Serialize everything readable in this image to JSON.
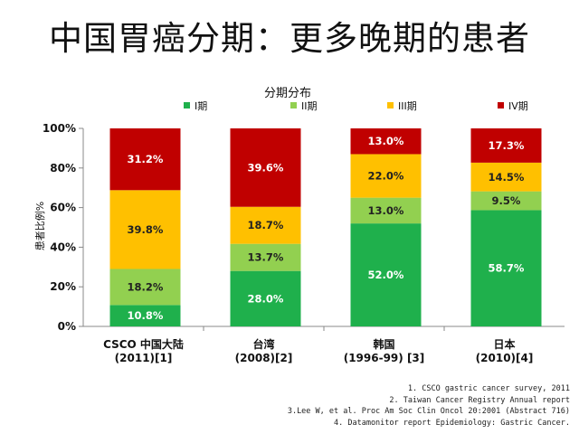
{
  "title": "中国胃癌分期：更多晚期的患者",
  "chart_data": {
    "type": "bar",
    "stacked": true,
    "legend_title": "分期分布",
    "legend_position": "top",
    "ylabel": "患者比例%",
    "ylim": [
      0,
      100
    ],
    "yticks": [
      "0%",
      "20%",
      "40%",
      "60%",
      "80%",
      "100%"
    ],
    "categories": [
      [
        "CSCO 中国大陆",
        "(2011)[1]"
      ],
      [
        "台湾",
        "(2008)[2]"
      ],
      [
        "韩国",
        "(1996-99) [3]"
      ],
      [
        "日本",
        "(2010)[4]"
      ]
    ],
    "series": [
      {
        "name": "I期",
        "color": "#1fb04c",
        "values": [
          10.8,
          28.0,
          52.0,
          58.7
        ],
        "labels": [
          "10.8%",
          "28.0%",
          "52.0%",
          "58.7%"
        ]
      },
      {
        "name": "II期",
        "color": "#92d050",
        "values": [
          18.2,
          13.7,
          13.0,
          9.5
        ],
        "labels": [
          "18.2%",
          "13.7%",
          "13.0%",
          "9.5%"
        ]
      },
      {
        "name": "III期",
        "color": "#ffc000",
        "values": [
          39.8,
          18.7,
          22.0,
          14.5
        ],
        "labels": [
          "39.8%",
          "18.7%",
          "22.0%",
          "14.5%"
        ]
      },
      {
        "name": "IV期",
        "color": "#c00000",
        "values": [
          31.2,
          39.6,
          13.0,
          17.3
        ],
        "labels": [
          "31.2%",
          "39.6%",
          "13.0%",
          "17.3%"
        ]
      }
    ]
  },
  "references": [
    "1. CSCO gastric cancer survey, 2011",
    "2. Taiwan Cancer Registry Annual report",
    "3.Lee W, et al. Proc Am Soc Clin Oncol 20:2001 (Abstract 716)",
    "4. Datamonitor report Epidemiology: Gastric Cancer."
  ]
}
